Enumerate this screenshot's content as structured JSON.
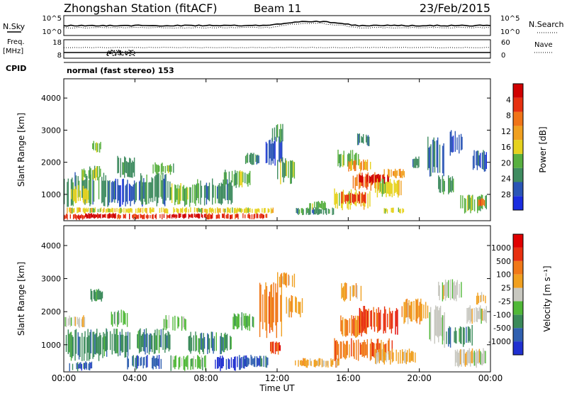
{
  "header": {
    "station": "Zhongshan Station (fitACF)",
    "beam": "Beam 11",
    "date": "23/Feb/2015"
  },
  "top_panels": {
    "nsky_label": "N.Sky",
    "nsky_ticks": [
      "10^5",
      "10^0"
    ],
    "nsearch_label": "N.Search",
    "nsearch_ticks": [
      "10^5",
      "10^0"
    ],
    "freq_label": "Freq.",
    "freq_unit": "[MHz]",
    "freq_ticks": [
      "18",
      "8"
    ],
    "nave_label": "Nave",
    "nave_ticks": [
      "60",
      "0"
    ],
    "cpid_label": "CPID",
    "cpid_text": "normal (fast stereo) 153"
  },
  "chart_data": [
    {
      "type": "heatmap",
      "name": "power-panel",
      "xlabel": "",
      "ylabel": "Slant Range [km]",
      "x_ticks": [
        "00:00",
        "04:00",
        "08:00",
        "12:00",
        "16:00",
        "20:00",
        "00:00"
      ],
      "x_tick_hours": [
        0,
        4,
        8,
        12,
        16,
        20,
        24
      ],
      "xlim_hours": [
        0,
        24
      ],
      "y_ticks": [
        "1000",
        "2000",
        "3000",
        "4000"
      ],
      "y_tick_values": [
        1000,
        2000,
        3000,
        4000
      ],
      "ylim": [
        180,
        4600
      ],
      "colorbar_label": "Power [dB]",
      "colorbar_ticks": [
        "4",
        "8",
        "12",
        "16",
        "20",
        "24",
        "28"
      ],
      "colorbar_colors": [
        "#1a2de0",
        "#2a55b6",
        "#3f8c60",
        "#58b040",
        "#e6d21e",
        "#f0a020",
        "#f07418",
        "#e63010",
        "#d00000"
      ],
      "regions": [
        {
          "h0": 0.0,
          "h1": 1.2,
          "r0": 200,
          "r1": 400,
          "level": 7
        },
        {
          "h0": 1.2,
          "h1": 3.0,
          "r0": 240,
          "r1": 420,
          "level": 8
        },
        {
          "h0": 3.0,
          "h1": 6.0,
          "r0": 220,
          "r1": 400,
          "level": 7
        },
        {
          "h0": 6.0,
          "h1": 8.0,
          "r0": 240,
          "r1": 420,
          "level": 8
        },
        {
          "h0": 8.0,
          "h1": 11.5,
          "r0": 220,
          "r1": 420,
          "level": 7
        },
        {
          "h0": 0.0,
          "h1": 11.8,
          "r0": 400,
          "r1": 600,
          "level": 4
        },
        {
          "h0": 0.0,
          "h1": 2.5,
          "r0": 600,
          "r1": 1700,
          "level": 2
        },
        {
          "h0": 0.4,
          "h1": 1.4,
          "r0": 700,
          "r1": 1300,
          "level": 4
        },
        {
          "h0": 1.0,
          "h1": 2.2,
          "r0": 1400,
          "r1": 1900,
          "level": 3
        },
        {
          "h0": 1.6,
          "h1": 2.1,
          "r0": 2300,
          "r1": 2700,
          "level": 3
        },
        {
          "h0": 2.5,
          "h1": 4.5,
          "r0": 600,
          "r1": 1500,
          "level": 1
        },
        {
          "h0": 3.0,
          "h1": 4.0,
          "r0": 1500,
          "r1": 2200,
          "level": 2
        },
        {
          "h0": 4.3,
          "h1": 6.0,
          "r0": 600,
          "r1": 1700,
          "level": 2
        },
        {
          "h0": 5.0,
          "h1": 6.2,
          "r0": 1600,
          "r1": 2000,
          "level": 3
        },
        {
          "h0": 6.0,
          "h1": 7.5,
          "r0": 600,
          "r1": 1400,
          "level": 3
        },
        {
          "h0": 7.5,
          "h1": 9.5,
          "r0": 650,
          "r1": 1500,
          "level": 2
        },
        {
          "h0": 9.0,
          "h1": 10.5,
          "r0": 1200,
          "r1": 1800,
          "level": 3
        },
        {
          "h0": 10.2,
          "h1": 11.0,
          "r0": 1900,
          "r1": 2300,
          "level": 2
        },
        {
          "h0": 11.3,
          "h1": 12.3,
          "r0": 1800,
          "r1": 2900,
          "level": 1
        },
        {
          "h0": 11.6,
          "h1": 12.4,
          "r0": 2600,
          "r1": 3200,
          "level": 2
        },
        {
          "h0": 12.0,
          "h1": 13.0,
          "r0": 1300,
          "r1": 2200,
          "level": 3
        },
        {
          "h0": 13.0,
          "h1": 15.2,
          "r0": 350,
          "r1": 600,
          "level": 2
        },
        {
          "h0": 13.8,
          "h1": 14.8,
          "r0": 500,
          "r1": 800,
          "level": 3
        },
        {
          "h0": 15.2,
          "h1": 17.3,
          "r0": 500,
          "r1": 1200,
          "level": 4
        },
        {
          "h0": 15.6,
          "h1": 17.0,
          "r0": 700,
          "r1": 1100,
          "level": 7
        },
        {
          "h0": 16.2,
          "h1": 17.8,
          "r0": 1100,
          "r1": 1700,
          "level": 6
        },
        {
          "h0": 16.6,
          "h1": 18.3,
          "r0": 1300,
          "r1": 1650,
          "level": 8
        },
        {
          "h0": 15.4,
          "h1": 16.6,
          "r0": 1800,
          "r1": 2400,
          "level": 3
        },
        {
          "h0": 16.0,
          "h1": 17.5,
          "r0": 1700,
          "r1": 2100,
          "level": 5
        },
        {
          "h0": 16.5,
          "h1": 17.2,
          "r0": 2500,
          "r1": 2900,
          "level": 2
        },
        {
          "h0": 17.5,
          "h1": 19.0,
          "r0": 900,
          "r1": 1500,
          "level": 4
        },
        {
          "h0": 18.0,
          "h1": 19.4,
          "r0": 1500,
          "r1": 1800,
          "level": 5
        },
        {
          "h0": 18.0,
          "h1": 19.2,
          "r0": 400,
          "r1": 600,
          "level": 4
        },
        {
          "h0": 19.5,
          "h1": 20.0,
          "r0": 1800,
          "r1": 2200,
          "level": 2
        },
        {
          "h0": 20.4,
          "h1": 21.4,
          "r0": 1500,
          "r1": 2800,
          "level": 1
        },
        {
          "h0": 21.0,
          "h1": 22.0,
          "r0": 1000,
          "r1": 1600,
          "level": 2
        },
        {
          "h0": 21.6,
          "h1": 22.6,
          "r0": 2200,
          "r1": 3000,
          "level": 1
        },
        {
          "h0": 22.3,
          "h1": 23.8,
          "r0": 400,
          "r1": 1000,
          "level": 3
        },
        {
          "h0": 23.0,
          "h1": 23.8,
          "r0": 1700,
          "r1": 2400,
          "level": 1
        },
        {
          "h0": 23.3,
          "h1": 23.8,
          "r0": 600,
          "r1": 900,
          "level": 6
        }
      ]
    },
    {
      "type": "heatmap",
      "name": "velocity-panel",
      "xlabel": "Time UT",
      "ylabel": "Slant Range [km]",
      "x_ticks": [
        "00:00",
        "04:00",
        "08:00",
        "12:00",
        "16:00",
        "20:00",
        "00:00"
      ],
      "x_tick_hours": [
        0,
        4,
        8,
        12,
        16,
        20,
        24
      ],
      "xlim_hours": [
        0,
        24
      ],
      "y_ticks": [
        "1000",
        "2000",
        "3000",
        "4000"
      ],
      "y_tick_values": [
        1000,
        2000,
        3000,
        4000
      ],
      "ylim": [
        180,
        4600
      ],
      "colorbar_label": "Velocity [m s⁻¹]",
      "colorbar_ticks": [
        "1000",
        "500",
        "100",
        "25",
        "-25",
        "-100",
        "-500",
        "-1000"
      ],
      "colorbar_colors": [
        "#2030d0",
        "#3060b0",
        "#3a8a5a",
        "#50b838",
        "#c8c8c0",
        "#f0a020",
        "#f07818",
        "#e83010",
        "#e00000"
      ],
      "regions": [
        {
          "h0": 0.0,
          "h1": 1.2,
          "r0": 1500,
          "r1": 1900,
          "level": 4
        },
        {
          "h0": 0.0,
          "h1": 2.5,
          "r0": 500,
          "r1": 1500,
          "level": 2
        },
        {
          "h0": 0.3,
          "h1": 1.6,
          "r0": 200,
          "r1": 500,
          "level": 1
        },
        {
          "h0": 1.5,
          "h1": 2.2,
          "r0": 2300,
          "r1": 2700,
          "level": 2
        },
        {
          "h0": 2.2,
          "h1": 3.8,
          "r0": 600,
          "r1": 1500,
          "level": 2
        },
        {
          "h0": 2.6,
          "h1": 3.6,
          "r0": 1500,
          "r1": 2100,
          "level": 3
        },
        {
          "h0": 3.5,
          "h1": 5.5,
          "r0": 250,
          "r1": 700,
          "level": 1
        },
        {
          "h0": 4.0,
          "h1": 6.0,
          "r0": 700,
          "r1": 1500,
          "level": 2
        },
        {
          "h0": 5.5,
          "h1": 7.0,
          "r0": 1400,
          "r1": 1900,
          "level": 3
        },
        {
          "h0": 6.0,
          "h1": 8.0,
          "r0": 200,
          "r1": 700,
          "level": 3
        },
        {
          "h0": 7.0,
          "h1": 9.5,
          "r0": 700,
          "r1": 1400,
          "level": 2
        },
        {
          "h0": 8.5,
          "h1": 10.3,
          "r0": 200,
          "r1": 700,
          "level": 0
        },
        {
          "h0": 9.5,
          "h1": 10.7,
          "r0": 1400,
          "r1": 2000,
          "level": 3
        },
        {
          "h0": 10.0,
          "h1": 11.5,
          "r0": 300,
          "r1": 700,
          "level": 1
        },
        {
          "h0": 11.0,
          "h1": 12.5,
          "r0": 1200,
          "r1": 2900,
          "level": 6
        },
        {
          "h0": 11.6,
          "h1": 12.2,
          "r0": 700,
          "r1": 1100,
          "level": 7
        },
        {
          "h0": 12.0,
          "h1": 13.0,
          "r0": 2700,
          "r1": 3200,
          "level": 5
        },
        {
          "h0": 12.5,
          "h1": 13.5,
          "r0": 1800,
          "r1": 2500,
          "level": 5
        },
        {
          "h0": 13.0,
          "h1": 15.5,
          "r0": 300,
          "r1": 600,
          "level": 5
        },
        {
          "h0": 15.2,
          "h1": 18.5,
          "r0": 500,
          "r1": 1200,
          "level": 6
        },
        {
          "h0": 15.5,
          "h1": 17.0,
          "r0": 1200,
          "r1": 1900,
          "level": 6
        },
        {
          "h0": 16.5,
          "h1": 18.8,
          "r0": 1300,
          "r1": 2200,
          "level": 7
        },
        {
          "h0": 15.6,
          "h1": 16.8,
          "r0": 2300,
          "r1": 2900,
          "level": 5
        },
        {
          "h0": 17.5,
          "h1": 19.8,
          "r0": 400,
          "r1": 900,
          "level": 5
        },
        {
          "h0": 19.0,
          "h1": 20.5,
          "r0": 1600,
          "r1": 2400,
          "level": 5
        },
        {
          "h0": 20.5,
          "h1": 21.5,
          "r0": 900,
          "r1": 2200,
          "level": 4
        },
        {
          "h0": 21.0,
          "h1": 22.5,
          "r0": 2300,
          "r1": 3000,
          "level": 4
        },
        {
          "h0": 21.5,
          "h1": 23.0,
          "r0": 900,
          "r1": 1600,
          "level": 2
        },
        {
          "h0": 22.0,
          "h1": 23.8,
          "r0": 300,
          "r1": 900,
          "level": 4
        },
        {
          "h0": 22.6,
          "h1": 23.8,
          "r0": 1600,
          "r1": 2200,
          "level": 4
        },
        {
          "h0": 23.2,
          "h1": 23.8,
          "r0": 2200,
          "r1": 2600,
          "level": 5
        }
      ]
    }
  ]
}
